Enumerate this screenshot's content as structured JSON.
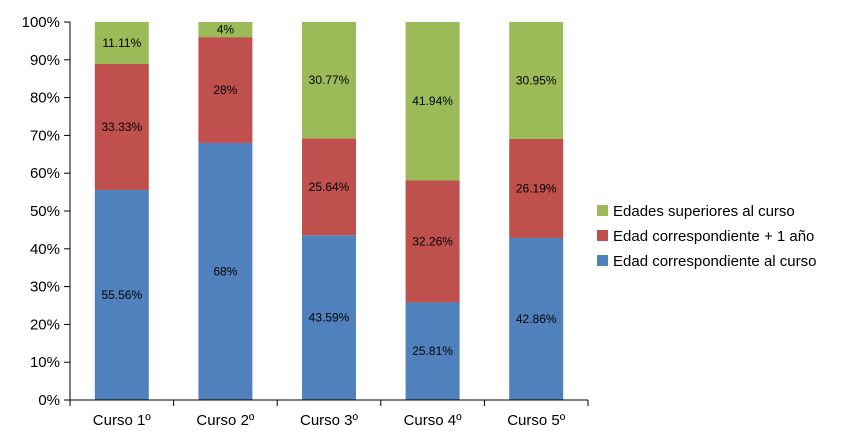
{
  "chart_data": {
    "type": "bar",
    "stacked": true,
    "percent_stacked": true,
    "categories": [
      "Curso 1º",
      "Curso 2º",
      "Curso 3º",
      "Curso 4º",
      "Curso 5º"
    ],
    "series": [
      {
        "name": "Edad correspondiente al curso",
        "color": "#4f81bd",
        "values": [
          55.56,
          68,
          43.59,
          25.81,
          42.86
        ],
        "labels": [
          "55.56%",
          "68%",
          "43.59%",
          "25.81%",
          "42.86%"
        ]
      },
      {
        "name": "Edad correspondiente + 1 año",
        "color": "#c0504d",
        "values": [
          33.33,
          28,
          25.64,
          32.26,
          26.19
        ],
        "labels": [
          "33.33%",
          "28%",
          "25.64%",
          "32.26%",
          "26.19%"
        ]
      },
      {
        "name": "Edades superiores al curso",
        "color": "#9bbb59",
        "values": [
          11.11,
          4,
          30.77,
          41.94,
          30.95
        ],
        "labels": [
          "11.11%",
          "4%",
          "30.77%",
          "41.94%",
          "30.95%"
        ]
      }
    ],
    "yticks": [
      "0%",
      "10%",
      "20%",
      "30%",
      "40%",
      "50%",
      "60%",
      "70%",
      "80%",
      "90%",
      "100%"
    ],
    "ylim": [
      0,
      100
    ],
    "grid": false,
    "legend_position": "right"
  }
}
